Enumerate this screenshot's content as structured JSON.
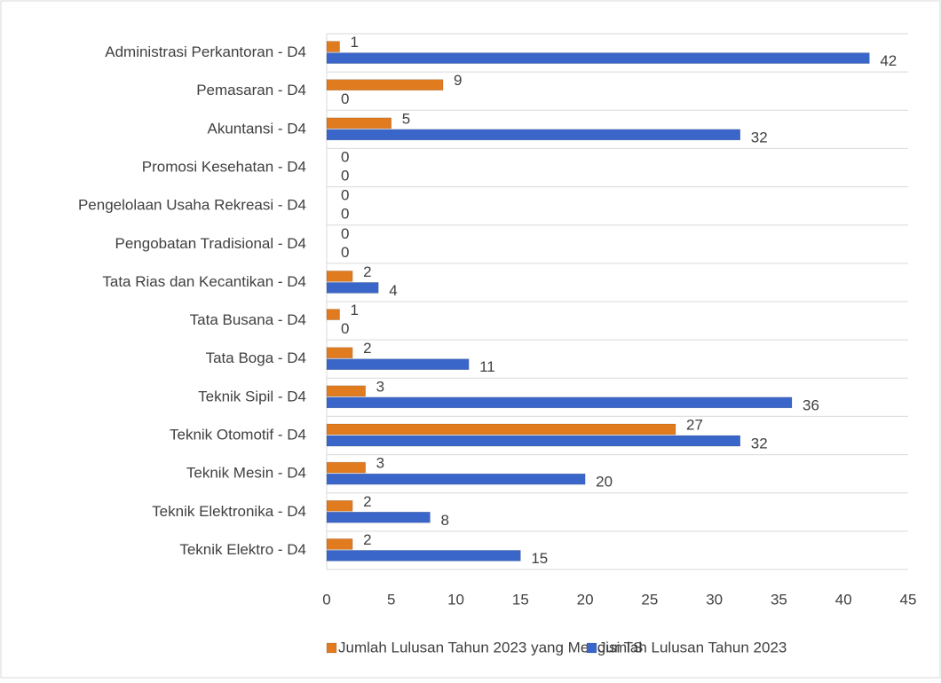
{
  "chart_data": {
    "type": "hbar",
    "categories": [
      "Administrasi Perkantoran - D4",
      "Pemasaran - D4",
      "Akuntansi - D4",
      "Promosi Kesehatan - D4",
      "Pengelolaan Usaha Rekreasi - D4",
      "Pengobatan Tradisional - D4",
      "Tata Rias dan Kecantikan - D4",
      "Tata Busana - D4",
      "Tata Boga - D4",
      "Teknik Sipil - D4",
      "Teknik Otomotif - D4",
      "Teknik Mesin - D4",
      "Teknik Elektronika - D4",
      "Teknik Elektro - D4"
    ],
    "series": [
      {
        "name": "Jumlah Lulusan Tahun 2023 yang Mengisi TS",
        "color": "#e07b20",
        "values": [
          1,
          9,
          5,
          0,
          0,
          0,
          2,
          1,
          2,
          3,
          27,
          3,
          2,
          2
        ]
      },
      {
        "name": "Jumlah Lulusan Tahun 2023",
        "color": "#3b66c9",
        "values": [
          42,
          0,
          32,
          0,
          0,
          0,
          4,
          0,
          11,
          36,
          32,
          20,
          8,
          15
        ]
      }
    ],
    "xlim": [
      0,
      45
    ],
    "xticks": [
      0,
      5,
      10,
      15,
      20,
      25,
      30,
      35,
      40,
      45
    ],
    "legend": "bottom"
  }
}
